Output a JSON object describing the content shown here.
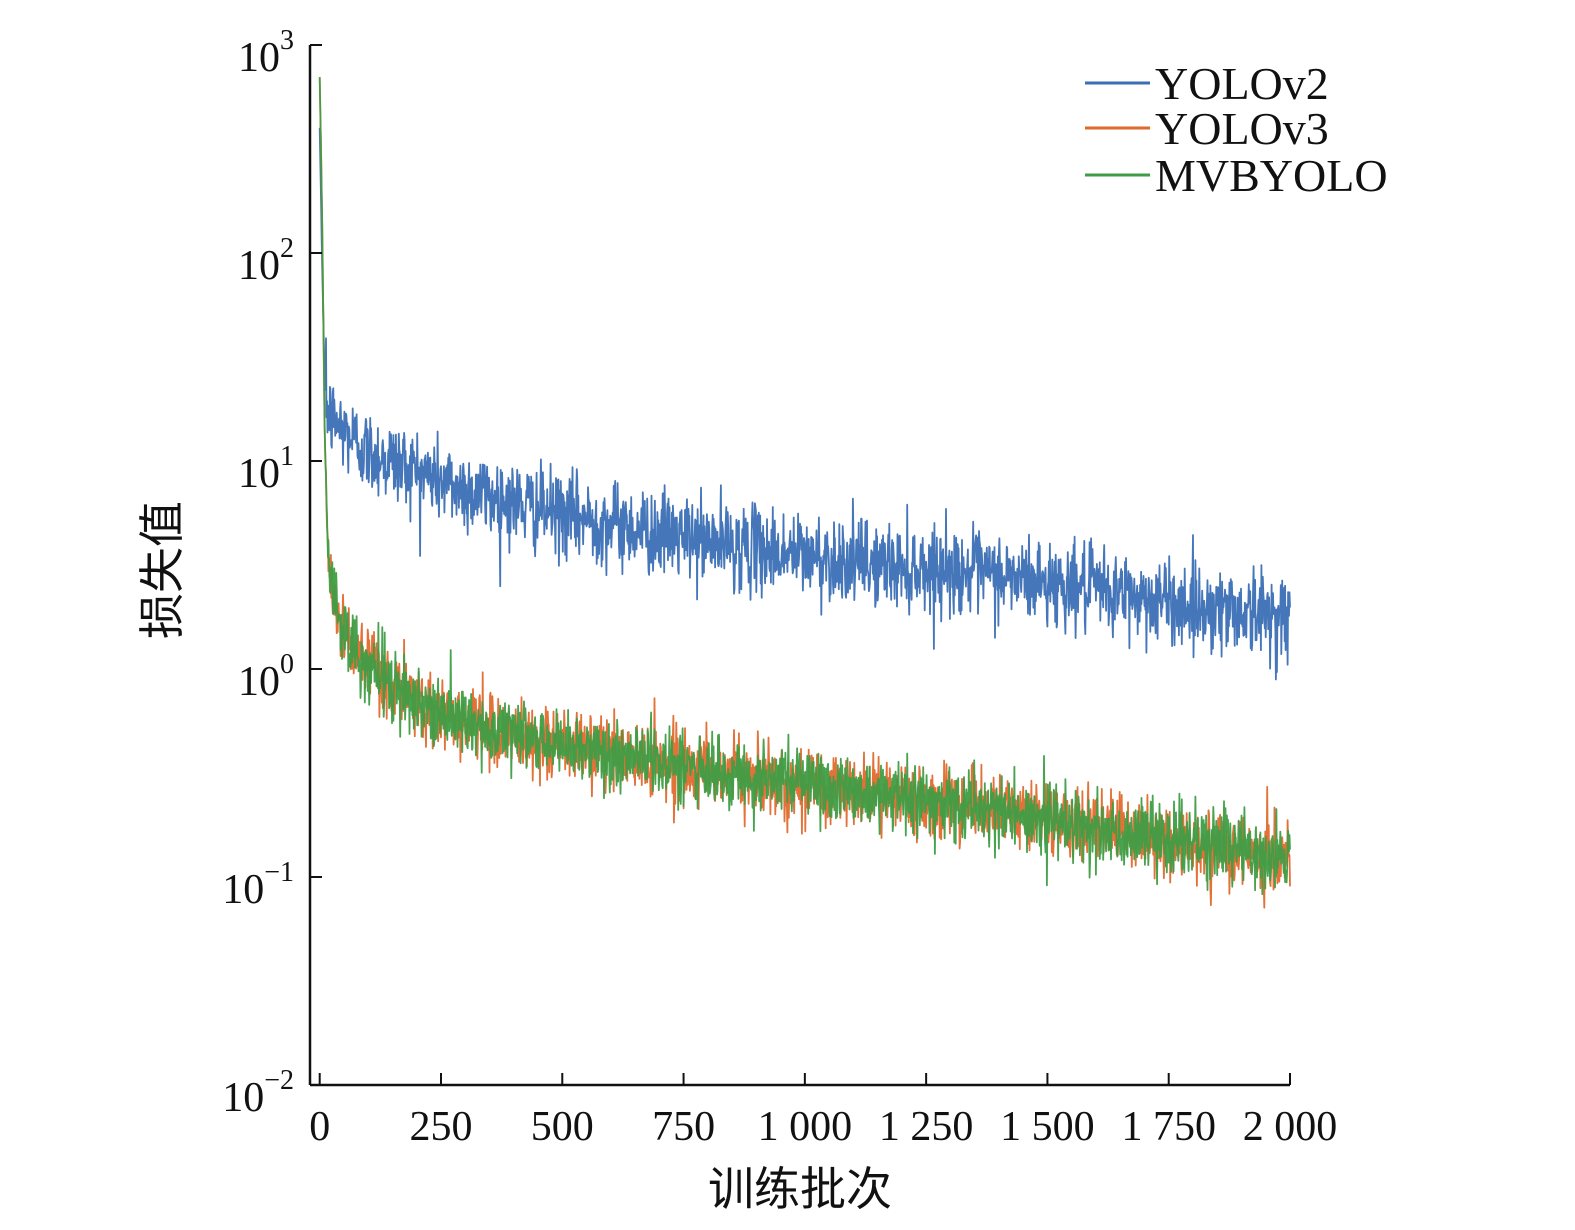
{
  "chart_data": {
    "type": "line",
    "title": "",
    "xlabel": "训练批次",
    "ylabel": "损失值",
    "xlim": [
      -20,
      2000
    ],
    "ylim_log10": [
      -2,
      3
    ],
    "yscale": "log",
    "grid": false,
    "legend_position": "top-right",
    "x_ticks": [
      0,
      250,
      500,
      750,
      1000,
      1250,
      1500,
      1750,
      2000
    ],
    "x_tick_labels": [
      "0",
      "250",
      "500",
      "750",
      "1 000",
      "1 250",
      "1 500",
      "1 750",
      "2 000"
    ],
    "y_ticks": [
      {
        "base": "10",
        "exp": "3",
        "value": 1000
      },
      {
        "base": "10",
        "exp": "2",
        "value": 100
      },
      {
        "base": "10",
        "exp": "1",
        "value": 10
      },
      {
        "base": "10",
        "exp": "0",
        "value": 1
      },
      {
        "base": "10",
        "exp": "−1",
        "value": 0.1
      },
      {
        "base": "10",
        "exp": "−2",
        "value": 0.01
      }
    ],
    "series": [
      {
        "name": "YOLOv2",
        "color": "#3a6fb5",
        "noise": 0.1,
        "points": [
          [
            0,
            400
          ],
          [
            5,
            90
          ],
          [
            10,
            25
          ],
          [
            15,
            18
          ],
          [
            25,
            16
          ],
          [
            50,
            14
          ],
          [
            100,
            11
          ],
          [
            150,
            10
          ],
          [
            200,
            9
          ],
          [
            250,
            8
          ],
          [
            300,
            7.3
          ],
          [
            400,
            6.3
          ],
          [
            500,
            5.5
          ],
          [
            600,
            5.0
          ],
          [
            700,
            4.5
          ],
          [
            800,
            4.1
          ],
          [
            900,
            3.8
          ],
          [
            1000,
            3.5
          ],
          [
            1100,
            3.3
          ],
          [
            1200,
            3.1
          ],
          [
            1300,
            3.0
          ],
          [
            1400,
            2.8
          ],
          [
            1500,
            2.6
          ],
          [
            1600,
            2.4
          ],
          [
            1700,
            2.2
          ],
          [
            1800,
            2.0
          ],
          [
            1900,
            1.9
          ],
          [
            2000,
            1.8
          ]
        ]
      },
      {
        "name": "YOLOv3",
        "color": "#e06a2c",
        "noise": 0.085,
        "points": [
          [
            0,
            700
          ],
          [
            5,
            150
          ],
          [
            10,
            15
          ],
          [
            15,
            5
          ],
          [
            20,
            3
          ],
          [
            30,
            2.2
          ],
          [
            50,
            1.5
          ],
          [
            100,
            1.0
          ],
          [
            150,
            0.82
          ],
          [
            200,
            0.7
          ],
          [
            250,
            0.62
          ],
          [
            300,
            0.56
          ],
          [
            400,
            0.47
          ],
          [
            500,
            0.43
          ],
          [
            600,
            0.39
          ],
          [
            700,
            0.36
          ],
          [
            800,
            0.33
          ],
          [
            900,
            0.3
          ],
          [
            1000,
            0.28
          ],
          [
            1100,
            0.26
          ],
          [
            1200,
            0.245
          ],
          [
            1300,
            0.23
          ],
          [
            1400,
            0.21
          ],
          [
            1500,
            0.19
          ],
          [
            1600,
            0.17
          ],
          [
            1700,
            0.155
          ],
          [
            1800,
            0.145
          ],
          [
            1900,
            0.135
          ],
          [
            2000,
            0.125
          ]
        ]
      },
      {
        "name": "MVBYOLO",
        "color": "#3f9d45",
        "noise": 0.085,
        "points": [
          [
            0,
            700
          ],
          [
            5,
            150
          ],
          [
            10,
            15
          ],
          [
            15,
            5
          ],
          [
            20,
            3
          ],
          [
            30,
            2.2
          ],
          [
            50,
            1.5
          ],
          [
            100,
            1.0
          ],
          [
            150,
            0.82
          ],
          [
            200,
            0.7
          ],
          [
            250,
            0.62
          ],
          [
            300,
            0.56
          ],
          [
            400,
            0.47
          ],
          [
            500,
            0.43
          ],
          [
            600,
            0.39
          ],
          [
            700,
            0.36
          ],
          [
            800,
            0.33
          ],
          [
            900,
            0.3
          ],
          [
            1000,
            0.28
          ],
          [
            1100,
            0.26
          ],
          [
            1200,
            0.245
          ],
          [
            1300,
            0.23
          ],
          [
            1400,
            0.21
          ],
          [
            1500,
            0.19
          ],
          [
            1600,
            0.17
          ],
          [
            1700,
            0.155
          ],
          [
            1800,
            0.145
          ],
          [
            1900,
            0.135
          ],
          [
            2000,
            0.125
          ]
        ]
      }
    ]
  }
}
